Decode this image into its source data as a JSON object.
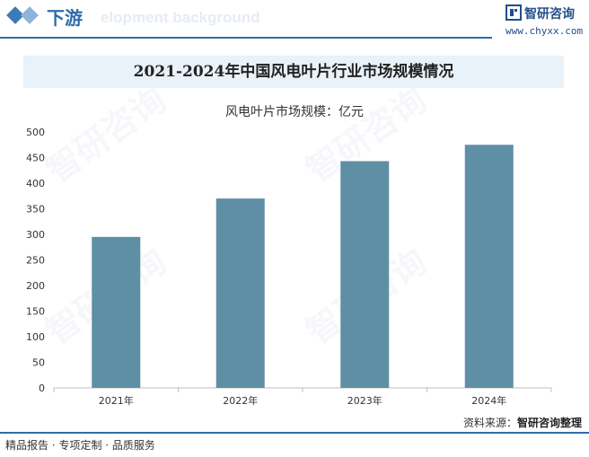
{
  "header": {
    "section_title": "下游",
    "ghost_text": "elopment background",
    "brand_name": "智研咨询",
    "brand_url": "www.chyxx.com"
  },
  "chart_title": "2021-2024年中国风电叶片行业市场规模情况",
  "chart_data": {
    "type": "bar",
    "title": "2021-2024年中国风电叶片行业市场规模情况",
    "subtitle": "风电叶片市场规模：亿元",
    "categories": [
      "2021年",
      "2022年",
      "2023年",
      "2024年"
    ],
    "values": [
      295,
      370,
      443,
      475
    ],
    "ylim": [
      0,
      500
    ],
    "yticks": [
      0,
      50,
      100,
      150,
      200,
      250,
      300,
      350,
      400,
      450,
      500
    ],
    "bar_color": "#5f8fa5",
    "grid": false
  },
  "footer": {
    "source_label": "资料来源：",
    "source_value": "智研咨询整理",
    "tagline": "精品报告 · 专项定制 · 品质服务"
  },
  "colors": {
    "accent": "#2f6ca8",
    "title_band": "#e9f1f9"
  }
}
